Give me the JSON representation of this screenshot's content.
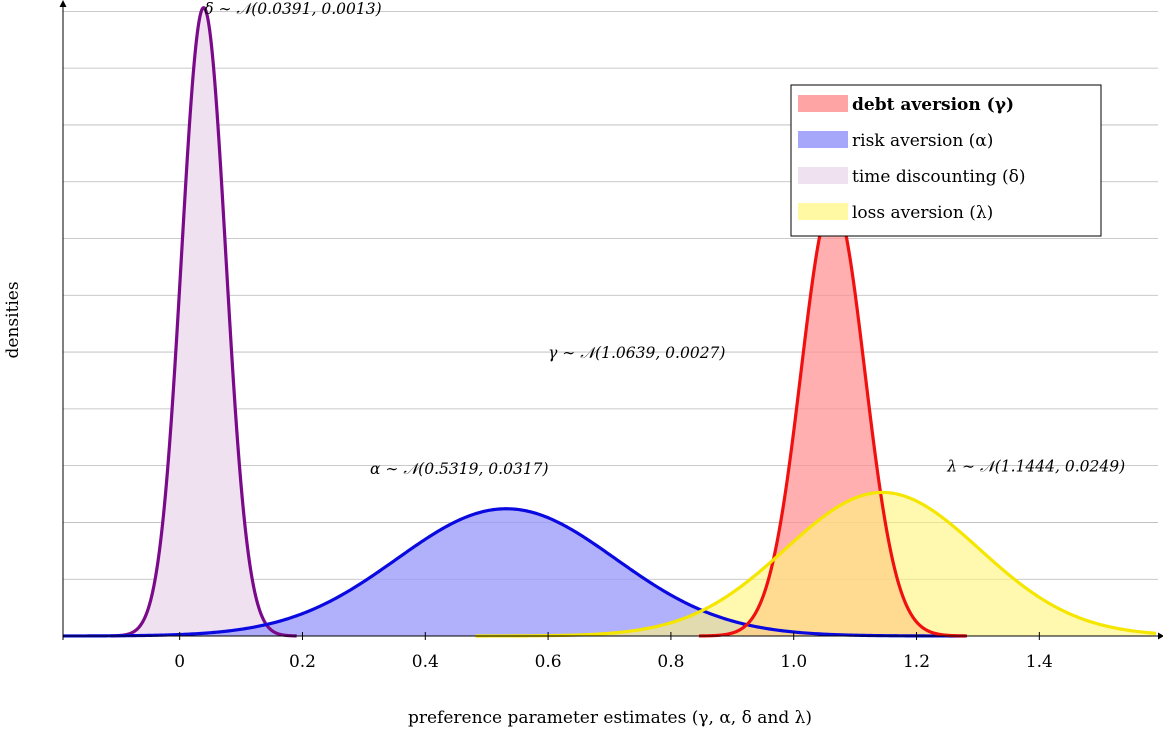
{
  "chart_data": {
    "type": "area",
    "xlabel": "preference parameter estimates (γ, α, δ and λ)",
    "ylabel": "densities",
    "xlim": [
      -0.19,
      1.59
    ],
    "ylim": [
      0,
      11.2
    ],
    "x_ticks": [
      {
        "value": 0,
        "label": "0"
      },
      {
        "value": 0.2,
        "label": "0.2"
      },
      {
        "value": 0.4,
        "label": "0.4"
      },
      {
        "value": 0.6,
        "label": "0.6"
      },
      {
        "value": 0.8,
        "label": "0.8"
      },
      {
        "value": 1.0,
        "label": "1.0"
      },
      {
        "value": 1.2,
        "label": "1.2"
      },
      {
        "value": 1.4,
        "label": "1.4"
      }
    ],
    "y_gridlines": [
      1,
      2,
      3,
      4,
      5,
      6,
      7,
      8,
      9,
      10,
      11
    ],
    "grid": "horizontal",
    "legend_placement": "top-right",
    "series": [
      {
        "key": "delta",
        "name": "time discounting (δ)",
        "mean": 0.0391,
        "variance": 0.0013,
        "line_color": "#7a0a8a",
        "fill_color": "#efe1f0",
        "fill_opacity": 1,
        "annotation": "δ ∼ 𝒩(0.0391, 0.0013)",
        "annot_at": {
          "x": 0.04,
          "y": 10.95
        }
      },
      {
        "key": "alpha",
        "name": "risk aversion (α)",
        "mean": 0.5319,
        "variance": 0.0317,
        "line_color": "#0a0ae0",
        "fill_color": "#9a9afa",
        "fill_opacity": 0.78,
        "annotation": "α ∼ 𝒩(0.5319, 0.0317)",
        "annot_at": {
          "x": 0.31,
          "y": 2.85
        }
      },
      {
        "key": "gamma",
        "name": "debt aversion (γ)",
        "legend_bold": true,
        "mean": 1.0639,
        "variance": 0.0027,
        "line_color": "#f01010",
        "fill_color": "#ff9090",
        "fill_opacity": 0.72,
        "annotation": "γ ∼ 𝒩(1.0639, 0.0027)",
        "annot_at": {
          "x": 0.6,
          "y": 4.9
        }
      },
      {
        "key": "lambda",
        "name": "loss aversion (λ)",
        "mean": 1.1444,
        "variance": 0.0249,
        "line_color": "#f5e600",
        "fill_color": "#fff680",
        "fill_opacity": 0.62,
        "annotation": "λ ∼ 𝒩(1.1444, 0.0249)",
        "annot_at": {
          "x": 1.25,
          "y": 2.9
        }
      }
    ],
    "legend_order": [
      "gamma",
      "alpha",
      "delta",
      "lambda"
    ]
  }
}
